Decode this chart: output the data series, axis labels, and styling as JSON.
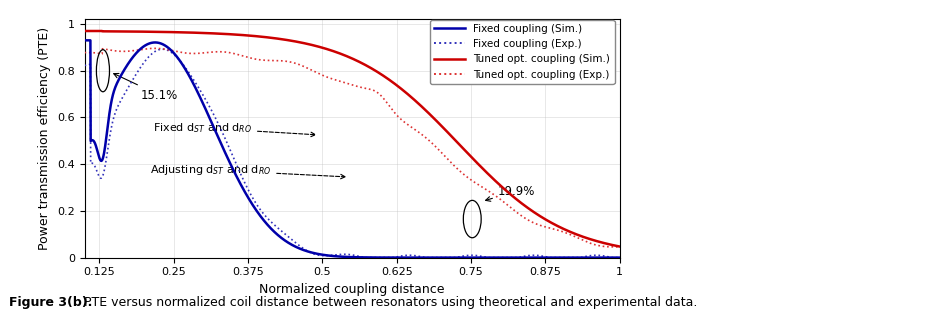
{
  "title": "",
  "xlabel": "Normalized coupling distance",
  "ylabel": "Power transmission efficiency (PTE)",
  "xlim": [
    0.1,
    1.0
  ],
  "ylim": [
    0,
    1.02
  ],
  "xticks": [
    0.125,
    0.25,
    0.375,
    0.5,
    0.625,
    0.75,
    0.875,
    1.0
  ],
  "yticks": [
    0,
    0.2,
    0.4,
    0.6,
    0.8,
    1.0
  ],
  "legend_entries": [
    "Fixed coupling (Sim.)",
    "Fixed coupling (Exp.)",
    "Tuned opt. coupling (Sim.)",
    "Tuned opt. coupling (Exp.)"
  ],
  "blue_solid_color": "#0000AA",
  "blue_dot_color": "#3333BB",
  "red_solid_color": "#CC0000",
  "red_dot_color": "#DD3333",
  "background_color": "#ffffff",
  "figsize": [
    9.39,
    3.22
  ],
  "dpi": 100,
  "caption_bold": "Figure 3(b).",
  "caption_rest": " PTE versus normalized coil distance between resonators using theoretical and experimental data."
}
